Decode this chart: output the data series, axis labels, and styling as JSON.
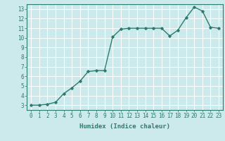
{
  "x": [
    0,
    1,
    2,
    3,
    4,
    5,
    6,
    7,
    8,
    9,
    10,
    11,
    12,
    13,
    14,
    15,
    16,
    17,
    18,
    19,
    20,
    21,
    22,
    23
  ],
  "y": [
    3.0,
    3.0,
    3.1,
    3.3,
    4.2,
    4.8,
    5.5,
    6.5,
    6.6,
    6.6,
    10.1,
    10.9,
    11.0,
    11.0,
    11.0,
    11.0,
    11.0,
    10.2,
    10.8,
    12.1,
    13.2,
    12.8,
    11.1,
    11.0
  ],
  "xlabel": "Humidex (Indice chaleur)",
  "xlim": [
    -0.5,
    23.5
  ],
  "ylim": [
    2.5,
    13.5
  ],
  "yticks": [
    3,
    4,
    5,
    6,
    7,
    8,
    9,
    10,
    11,
    12,
    13
  ],
  "xticks": [
    0,
    1,
    2,
    3,
    4,
    5,
    6,
    7,
    8,
    9,
    10,
    11,
    12,
    13,
    14,
    15,
    16,
    17,
    18,
    19,
    20,
    21,
    22,
    23
  ],
  "line_color": "#2d7a6e",
  "bg_color": "#cce9eb",
  "grid_color": "#ffffff",
  "tick_color": "#2d7a6e",
  "label_color": "#2d7a6e",
  "marker": "D",
  "marker_size": 1.8,
  "line_width": 1.0,
  "xlabel_fontsize": 6.5,
  "tick_fontsize": 5.5
}
